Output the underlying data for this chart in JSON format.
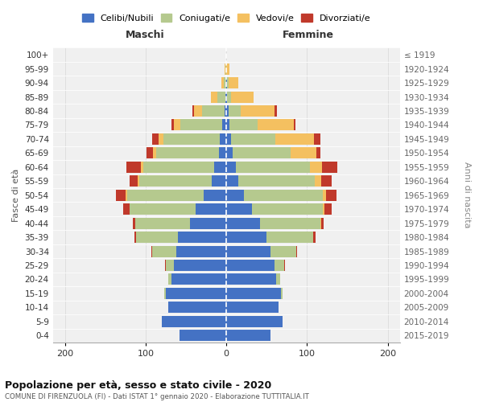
{
  "age_groups": [
    "100+",
    "95-99",
    "90-94",
    "85-89",
    "80-84",
    "75-79",
    "70-74",
    "65-69",
    "60-64",
    "55-59",
    "50-54",
    "45-49",
    "40-44",
    "35-39",
    "30-34",
    "25-29",
    "20-24",
    "15-19",
    "10-14",
    "5-9",
    "0-4"
  ],
  "birth_years": [
    "≤ 1919",
    "1920-1924",
    "1925-1929",
    "1930-1934",
    "1935-1939",
    "1940-1944",
    "1945-1949",
    "1950-1954",
    "1955-1959",
    "1960-1964",
    "1965-1969",
    "1970-1974",
    "1975-1979",
    "1980-1984",
    "1985-1989",
    "1990-1994",
    "1995-1999",
    "2000-2004",
    "2005-2009",
    "2010-2014",
    "2015-2019"
  ],
  "maschi_celibi": [
    0,
    0,
    0,
    1,
    2,
    5,
    8,
    9,
    15,
    18,
    28,
    38,
    45,
    60,
    62,
    65,
    68,
    75,
    72,
    80,
    58
  ],
  "maschi_coniugati": [
    0,
    1,
    3,
    10,
    28,
    52,
    70,
    78,
    88,
    90,
    95,
    82,
    68,
    52,
    30,
    10,
    4,
    2,
    0,
    0,
    0
  ],
  "maschi_vedovi": [
    0,
    1,
    3,
    8,
    10,
    8,
    6,
    4,
    3,
    2,
    2,
    0,
    0,
    0,
    0,
    0,
    0,
    0,
    0,
    0,
    0
  ],
  "maschi_divorziati": [
    0,
    0,
    0,
    0,
    2,
    3,
    8,
    8,
    18,
    10,
    12,
    8,
    3,
    2,
    1,
    1,
    0,
    0,
    0,
    0,
    0
  ],
  "femmine_nubili": [
    0,
    0,
    1,
    1,
    3,
    4,
    6,
    8,
    12,
    15,
    22,
    32,
    42,
    50,
    55,
    60,
    62,
    68,
    65,
    70,
    55
  ],
  "femmine_coniugate": [
    0,
    0,
    2,
    5,
    15,
    35,
    55,
    72,
    92,
    95,
    98,
    88,
    75,
    58,
    32,
    12,
    5,
    2,
    0,
    0,
    0
  ],
  "femmine_vedove": [
    0,
    4,
    12,
    28,
    42,
    45,
    48,
    32,
    15,
    8,
    4,
    2,
    1,
    0,
    0,
    0,
    0,
    0,
    0,
    0,
    0
  ],
  "femmine_divorziate": [
    0,
    0,
    0,
    0,
    3,
    2,
    8,
    5,
    18,
    12,
    12,
    8,
    3,
    3,
    1,
    1,
    0,
    0,
    0,
    0,
    0
  ],
  "colors": {
    "celibi": "#4472c4",
    "coniugati": "#b5c98e",
    "vedovi": "#f4c060",
    "divorziati": "#c0392b"
  },
  "title": "Popolazione per età, sesso e stato civile - 2020",
  "subtitle": "COMUNE DI FIRENZUOLA (FI) - Dati ISTAT 1° gennaio 2020 - Elaborazione TUTTITALIA.IT",
  "legend_labels": [
    "Celibi/Nubili",
    "Coniugati/e",
    "Vedovi/e",
    "Divorziati/e"
  ],
  "xlim": 215,
  "background_color": "#ffffff",
  "plot_bg": "#f0f0f0",
  "grid_color": "#cccccc"
}
